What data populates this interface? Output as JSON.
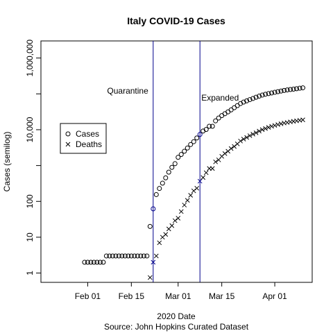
{
  "chart_data": {
    "type": "scatter",
    "title": "Italy COVID-19 Cases",
    "xlabel": "2020 Date",
    "caption": "Source: John Hopkins Curated Dataset",
    "ylabel": "Cases (semilog)",
    "yscale": "log",
    "xlim": [
      "2020-01-17",
      "2020-04-13"
    ],
    "ylim": [
      0.55,
      3000000
    ],
    "x_ticks": [
      {
        "date": "2020-02-01",
        "label": "Feb 01"
      },
      {
        "date": "2020-02-15",
        "label": "Feb 15"
      },
      {
        "date": "2020-03-01",
        "label": "Mar 01"
      },
      {
        "date": "2020-03-15",
        "label": "Mar 15"
      },
      {
        "date": "2020-04-01",
        "label": "Apr 01"
      }
    ],
    "y_ticks": [
      {
        "value": 1,
        "label": "1"
      },
      {
        "value": 10,
        "label": "10"
      },
      {
        "value": 100,
        "label": "100"
      },
      {
        "value": 10000,
        "label": "10,000"
      },
      {
        "value": 1000000,
        "label": "1,000,000"
      }
    ],
    "legend": {
      "position": "left",
      "entries": [
        {
          "name": "Cases",
          "marker": "circle"
        },
        {
          "name": "Deaths",
          "marker": "x"
        }
      ]
    },
    "annotations": [
      {
        "date": "2020-02-22",
        "label": "Quarantine",
        "color": "#00008b"
      },
      {
        "date": "2020-03-08",
        "label": "Expanded",
        "color": "#00008b"
      }
    ],
    "highlight_color": "#00008b",
    "series": [
      {
        "name": "Cases",
        "marker": "circle",
        "points": [
          [
            "2020-01-31",
            2
          ],
          [
            "2020-02-01",
            2
          ],
          [
            "2020-02-02",
            2
          ],
          [
            "2020-02-03",
            2
          ],
          [
            "2020-02-04",
            2
          ],
          [
            "2020-02-05",
            2
          ],
          [
            "2020-02-06",
            2
          ],
          [
            "2020-02-07",
            3
          ],
          [
            "2020-02-08",
            3
          ],
          [
            "2020-02-09",
            3
          ],
          [
            "2020-02-10",
            3
          ],
          [
            "2020-02-11",
            3
          ],
          [
            "2020-02-12",
            3
          ],
          [
            "2020-02-13",
            3
          ],
          [
            "2020-02-14",
            3
          ],
          [
            "2020-02-15",
            3
          ],
          [
            "2020-02-16",
            3
          ],
          [
            "2020-02-17",
            3
          ],
          [
            "2020-02-18",
            3
          ],
          [
            "2020-02-19",
            3
          ],
          [
            "2020-02-20",
            3
          ],
          [
            "2020-02-21",
            20
          ],
          [
            "2020-02-22",
            62
          ],
          [
            "2020-02-23",
            155
          ],
          [
            "2020-02-24",
            229
          ],
          [
            "2020-02-25",
            322
          ],
          [
            "2020-02-26",
            453
          ],
          [
            "2020-02-27",
            655
          ],
          [
            "2020-02-28",
            888
          ],
          [
            "2020-02-29",
            1128
          ],
          [
            "2020-03-01",
            1694
          ],
          [
            "2020-03-02",
            2036
          ],
          [
            "2020-03-03",
            2502
          ],
          [
            "2020-03-04",
            3089
          ],
          [
            "2020-03-05",
            3858
          ],
          [
            "2020-03-06",
            4636
          ],
          [
            "2020-03-07",
            5883
          ],
          [
            "2020-03-08",
            7375
          ],
          [
            "2020-03-09",
            9172
          ],
          [
            "2020-03-10",
            10149
          ],
          [
            "2020-03-11",
            12462
          ],
          [
            "2020-03-12",
            12462
          ],
          [
            "2020-03-13",
            17660
          ],
          [
            "2020-03-14",
            21157
          ],
          [
            "2020-03-15",
            24747
          ],
          [
            "2020-03-16",
            27980
          ],
          [
            "2020-03-17",
            31506
          ],
          [
            "2020-03-18",
            35713
          ],
          [
            "2020-03-19",
            41035
          ],
          [
            "2020-03-20",
            47021
          ],
          [
            "2020-03-21",
            53578
          ],
          [
            "2020-03-22",
            59138
          ],
          [
            "2020-03-23",
            63927
          ],
          [
            "2020-03-24",
            69176
          ],
          [
            "2020-03-25",
            74386
          ],
          [
            "2020-03-26",
            80589
          ],
          [
            "2020-03-27",
            86498
          ],
          [
            "2020-03-28",
            92472
          ],
          [
            "2020-03-29",
            97689
          ],
          [
            "2020-03-30",
            101739
          ],
          [
            "2020-03-31",
            105792
          ],
          [
            "2020-04-01",
            110574
          ],
          [
            "2020-04-02",
            115242
          ],
          [
            "2020-04-03",
            119827
          ],
          [
            "2020-04-04",
            124632
          ],
          [
            "2020-04-05",
            128948
          ],
          [
            "2020-04-06",
            132547
          ],
          [
            "2020-04-07",
            135586
          ],
          [
            "2020-04-08",
            139422
          ],
          [
            "2020-04-09",
            143626
          ],
          [
            "2020-04-10",
            147577
          ]
        ]
      },
      {
        "name": "Deaths",
        "marker": "x",
        "points": [
          [
            "2020-02-21",
            0.75
          ],
          [
            "2020-02-22",
            2
          ],
          [
            "2020-02-23",
            3
          ],
          [
            "2020-02-24",
            7
          ],
          [
            "2020-02-25",
            10
          ],
          [
            "2020-02-26",
            12
          ],
          [
            "2020-02-27",
            17
          ],
          [
            "2020-02-28",
            21
          ],
          [
            "2020-02-29",
            29
          ],
          [
            "2020-03-01",
            34
          ],
          [
            "2020-03-02",
            52
          ],
          [
            "2020-03-03",
            79
          ],
          [
            "2020-03-04",
            107
          ],
          [
            "2020-03-05",
            148
          ],
          [
            "2020-03-06",
            197
          ],
          [
            "2020-03-07",
            233
          ],
          [
            "2020-03-08",
            366
          ],
          [
            "2020-03-09",
            463
          ],
          [
            "2020-03-10",
            631
          ],
          [
            "2020-03-11",
            827
          ],
          [
            "2020-03-12",
            827
          ],
          [
            "2020-03-13",
            1266
          ],
          [
            "2020-03-14",
            1441
          ],
          [
            "2020-03-15",
            1809
          ],
          [
            "2020-03-16",
            2158
          ],
          [
            "2020-03-17",
            2503
          ],
          [
            "2020-03-18",
            2978
          ],
          [
            "2020-03-19",
            3405
          ],
          [
            "2020-03-20",
            4032
          ],
          [
            "2020-03-21",
            4825
          ],
          [
            "2020-03-22",
            5476
          ],
          [
            "2020-03-23",
            6077
          ],
          [
            "2020-03-24",
            6820
          ],
          [
            "2020-03-25",
            7503
          ],
          [
            "2020-03-26",
            8215
          ],
          [
            "2020-03-27",
            9134
          ],
          [
            "2020-03-28",
            10023
          ],
          [
            "2020-03-29",
            10779
          ],
          [
            "2020-03-30",
            11591
          ],
          [
            "2020-03-31",
            12428
          ],
          [
            "2020-04-01",
            13155
          ],
          [
            "2020-04-02",
            13915
          ],
          [
            "2020-04-03",
            14681
          ],
          [
            "2020-04-04",
            15362
          ],
          [
            "2020-04-05",
            15887
          ],
          [
            "2020-04-06",
            16523
          ],
          [
            "2020-04-07",
            17127
          ],
          [
            "2020-04-08",
            17669
          ],
          [
            "2020-04-09",
            18279
          ],
          [
            "2020-04-10",
            18849
          ]
        ]
      }
    ]
  }
}
